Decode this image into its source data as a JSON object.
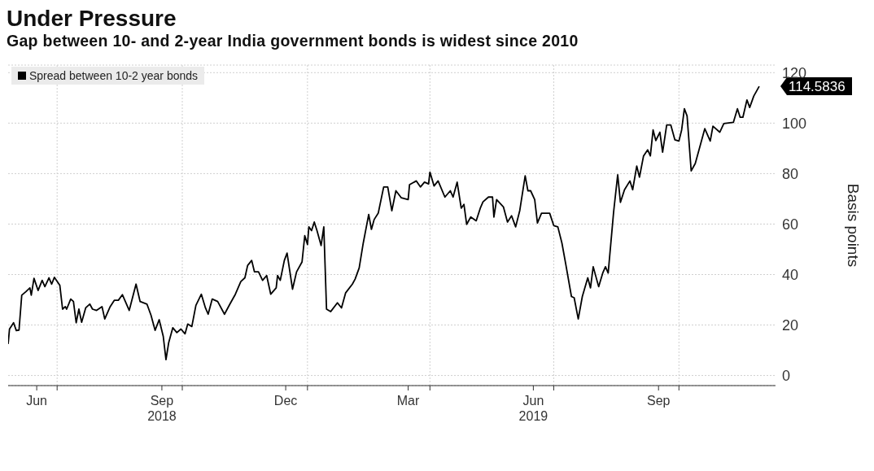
{
  "chart_data": {
    "type": "line",
    "title": "Under Pressure",
    "subtitle": "Gap between 10- and 2-year India government bonds is widest since 2010",
    "ylabel": "Basis points",
    "x": [
      "2018-05-26",
      "2018-05-27",
      "2018-05-30",
      "2018-06-01",
      "2018-06-03",
      "2018-06-05",
      "2018-06-08",
      "2018-06-11",
      "2018-06-12",
      "2018-06-14",
      "2018-06-17",
      "2018-06-20",
      "2018-06-22",
      "2018-06-25",
      "2018-06-27",
      "2018-06-29",
      "2018-07-03",
      "2018-07-05",
      "2018-07-07",
      "2018-07-08",
      "2018-07-11",
      "2018-07-13",
      "2018-07-15",
      "2018-07-17",
      "2018-07-19",
      "2018-07-22",
      "2018-07-25",
      "2018-07-27",
      "2018-07-30",
      "2018-08-03",
      "2018-08-05",
      "2018-08-09",
      "2018-08-12",
      "2018-08-15",
      "2018-08-18",
      "2018-08-23",
      "2018-08-28",
      "2018-08-31",
      "2018-09-05",
      "2018-09-08",
      "2018-09-11",
      "2018-09-14",
      "2018-09-17",
      "2018-09-19",
      "2018-09-21",
      "2018-09-24",
      "2018-09-27",
      "2018-09-30",
      "2018-10-03",
      "2018-10-05",
      "2018-10-08",
      "2018-10-11",
      "2018-10-15",
      "2018-10-18",
      "2018-10-20",
      "2018-10-23",
      "2018-10-27",
      "2018-11-01",
      "2018-11-05",
      "2018-11-09",
      "2018-11-13",
      "2018-11-16",
      "2018-11-18",
      "2018-11-21",
      "2018-11-23",
      "2018-11-26",
      "2018-11-29",
      "2018-12-02",
      "2018-12-05",
      "2018-12-09",
      "2018-12-10",
      "2018-12-12",
      "2018-12-15",
      "2018-12-17",
      "2018-12-21",
      "2018-12-24",
      "2018-12-28",
      "2018-12-30",
      "2019-01-01",
      "2019-01-02",
      "2019-01-04",
      "2019-01-06",
      "2019-01-08",
      "2019-01-11",
      "2019-01-13",
      "2019-01-15",
      "2019-01-18",
      "2019-01-23",
      "2019-01-26",
      "2019-01-29",
      "2019-02-03",
      "2019-02-05",
      "2019-02-08",
      "2019-02-11",
      "2019-02-15",
      "2019-02-17",
      "2019-02-19",
      "2019-02-22",
      "2019-02-26",
      "2019-03-01",
      "2019-03-04",
      "2019-03-07",
      "2019-03-11",
      "2019-03-16",
      "2019-03-17",
      "2019-03-22",
      "2019-03-25",
      "2019-03-28",
      "2019-03-31",
      "2019-04-01",
      "2019-04-04",
      "2019-04-07",
      "2019-04-12",
      "2019-04-16",
      "2019-04-18",
      "2019-04-21",
      "2019-04-24",
      "2019-04-26",
      "2019-04-28",
      "2019-05-01",
      "2019-05-05",
      "2019-05-08",
      "2019-05-10",
      "2019-05-14",
      "2019-05-17",
      "2019-05-18",
      "2019-05-20",
      "2019-05-25",
      "2019-05-28",
      "2019-05-31",
      "2019-06-03",
      "2019-06-06",
      "2019-06-10",
      "2019-06-12",
      "2019-06-14",
      "2019-06-17",
      "2019-06-19",
      "2019-06-22",
      "2019-06-28",
      "2019-07-01",
      "2019-07-04",
      "2019-07-07",
      "2019-07-10",
      "2019-07-14",
      "2019-07-16",
      "2019-07-19",
      "2019-07-22",
      "2019-07-26",
      "2019-07-28",
      "2019-07-30",
      "2019-08-03",
      "2019-08-06",
      "2019-08-08",
      "2019-08-10",
      "2019-08-14",
      "2019-08-17",
      "2019-08-19",
      "2019-08-22",
      "2019-08-26",
      "2019-08-28",
      "2019-08-31",
      "2019-09-02",
      "2019-09-05",
      "2019-09-08",
      "2019-09-10",
      "2019-09-12",
      "2019-09-14",
      "2019-09-17",
      "2019-09-19",
      "2019-09-22",
      "2019-09-25",
      "2019-09-28",
      "2019-10-01",
      "2019-10-03",
      "2019-10-05",
      "2019-10-07",
      "2019-10-10",
      "2019-10-13",
      "2019-10-16",
      "2019-10-20",
      "2019-10-24",
      "2019-10-26",
      "2019-10-31",
      "2019-11-03",
      "2019-11-10",
      "2019-11-13",
      "2019-11-15",
      "2019-11-17",
      "2019-11-20",
      "2019-11-22",
      "2019-11-25",
      "2019-11-29"
    ],
    "series": [
      {
        "name": "Spread between 10-2 year bonds",
        "color": "#000000",
        "values": [
          12.5,
          18.4,
          20.9,
          17.8,
          18,
          31.8,
          33.2,
          34.7,
          31.8,
          38.5,
          33.7,
          37.7,
          35.2,
          38.7,
          36.2,
          38.9,
          35.7,
          26.3,
          27.3,
          26.3,
          30.3,
          29.3,
          20.9,
          26.3,
          21.1,
          26.8,
          28.3,
          26.3,
          25.8,
          27.3,
          22.4,
          27.3,
          29.8,
          29.8,
          32,
          25.8,
          36.2,
          29.3,
          28.3,
          23.9,
          17.9,
          22.1,
          15.5,
          6.3,
          13,
          18.9,
          17,
          18.4,
          16.5,
          20.4,
          19.4,
          27.8,
          32.2,
          26.8,
          24.3,
          30.3,
          29.3,
          24.3,
          28.3,
          32.2,
          37.2,
          38.7,
          43.6,
          45.6,
          41.1,
          41.1,
          37.7,
          39.6,
          32.2,
          34.7,
          39.6,
          37.7,
          45.6,
          48.5,
          34.2,
          41.1,
          45,
          55.4,
          51.9,
          58.9,
          57.4,
          60.8,
          57.4,
          51.5,
          58.9,
          26.3,
          25.3,
          28.8,
          26.8,
          32.7,
          36.2,
          38.2,
          42.6,
          52.5,
          63.8,
          57.9,
          61.8,
          64.3,
          74.7,
          74.7,
          65.3,
          73.2,
          70.4,
          69.7,
          75.6,
          77.1,
          74.7,
          76.6,
          75.9,
          80.6,
          75.1,
          77.1,
          70.7,
          73.2,
          70.7,
          76.6,
          66.3,
          67.8,
          59.9,
          62.8,
          61.3,
          66.3,
          68.8,
          70.7,
          70.7,
          62.8,
          69.7,
          66.8,
          60.8,
          63.3,
          58.9,
          65.3,
          79.1,
          73.2,
          73.2,
          69.7,
          60.4,
          64.3,
          64.3,
          59.4,
          58.9,
          52.5,
          43.6,
          31.3,
          30.8,
          22.4,
          31.3,
          38.7,
          34.7,
          43.1,
          35.2,
          40.6,
          43.1,
          40.6,
          64.8,
          79.5,
          68.6,
          73.6,
          77.1,
          73.6,
          83,
          78.6,
          87,
          89.4,
          87,
          97.3,
          93.1,
          96.4,
          88.5,
          99.3,
          99.3,
          93.4,
          92.9,
          97.3,
          105.7,
          102.8,
          81.1,
          84,
          89.9,
          97.8,
          92.9,
          98.8,
          96.4,
          99.8,
          100.3,
          105.7,
          102.3,
          102.3,
          109.2,
          106.2,
          110.7,
          114.5836
        ]
      }
    ],
    "xlim": [
      "2018-05-26",
      "2019-12-11"
    ],
    "xticks": [
      {
        "value": "2018-06-16",
        "label": "Jun"
      },
      {
        "value": "2018-07-01",
        "label": null
      },
      {
        "value": "2018-09-16",
        "label": "Sep\n2018"
      },
      {
        "value": "2018-10-01",
        "label": null
      },
      {
        "value": "2018-12-16",
        "label": "Dec"
      },
      {
        "value": "2019-01-01",
        "label": null
      },
      {
        "value": "2019-03-16",
        "label": "Mar"
      },
      {
        "value": "2019-04-01",
        "label": null
      },
      {
        "value": "2019-06-16",
        "label": "Jun\n2019"
      },
      {
        "value": "2019-07-01",
        "label": null
      },
      {
        "value": "2019-09-16",
        "label": "Sep"
      },
      {
        "value": "2019-10-01",
        "label": null
      }
    ],
    "ylim": [
      -4,
      123
    ],
    "yticks": [
      0,
      20,
      40,
      60,
      80,
      100,
      120
    ],
    "grid": true,
    "legend": "top left",
    "line_style": "solid",
    "marker": "none",
    "annotations": [
      {
        "text": "114.5836",
        "x": "2019-11-29",
        "y": 114.5836
      }
    ]
  }
}
